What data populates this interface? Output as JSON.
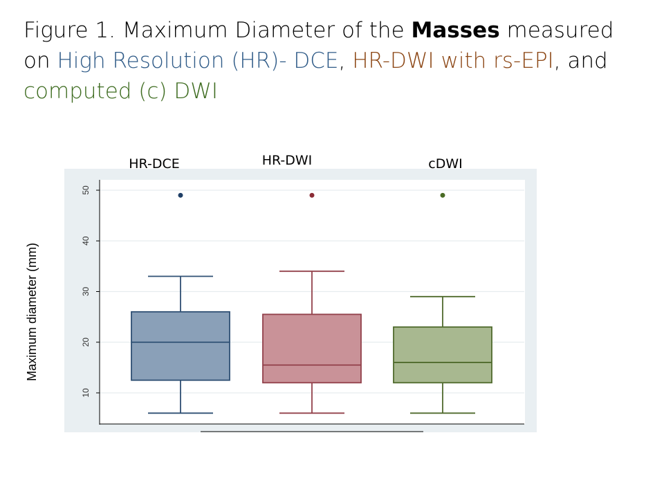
{
  "title": {
    "segments": [
      {
        "text": "Figure 1. Maximum Diameter of the ",
        "color": "#000000",
        "bold": false
      },
      {
        "text": "Masses",
        "color": "#000000",
        "bold": true
      },
      {
        "text": " measured on ",
        "color": "#000000",
        "bold": false
      },
      {
        "text": "High Resolution (HR)- DCE",
        "color": "#2e5a87",
        "bold": false
      },
      {
        "text": ", ",
        "color": "#000000",
        "bold": false
      },
      {
        "text": "HR-DWI with rs-EPI",
        "color": "#8b4513",
        "bold": false
      },
      {
        "text": ", and ",
        "color": "#000000",
        "bold": false
      },
      {
        "text": "computed (c) DWI",
        "color": "#3d6b1f",
        "bold": false
      }
    ]
  },
  "chart_data": {
    "type": "box",
    "title": "",
    "xlabel": "",
    "ylabel": "Maximum diameter (mm)",
    "ylim": [
      4,
      52
    ],
    "yticks": [
      10,
      20,
      30,
      40,
      50
    ],
    "grid": true,
    "categories": [
      "HR-DCE",
      "HR-DWI",
      "cDWI"
    ],
    "series": [
      {
        "category": "HR-DCE",
        "min": 6,
        "q1": 12.5,
        "median": 20,
        "q3": 26,
        "max": 33,
        "outliers": [
          49
        ],
        "fill": "#8aa0b8",
        "stroke": "#2e4f73",
        "outlier_color": "#1f3f66"
      },
      {
        "category": "HR-DWI",
        "min": 6,
        "q1": 12,
        "median": 15.5,
        "q3": 25.5,
        "max": 34,
        "outliers": [
          49
        ],
        "fill": "#c99298",
        "stroke": "#92404a",
        "outlier_color": "#8b2c36"
      },
      {
        "category": "cDWI",
        "min": 6,
        "q1": 12,
        "median": 16,
        "q3": 23,
        "max": 29,
        "outliers": [
          49
        ],
        "fill": "#a8b890",
        "stroke": "#4f6a2c",
        "outlier_color": "#4a6b24"
      }
    ],
    "colors": {
      "outer_bg": "#e9eff2",
      "plot_bg": "#ffffff",
      "grid": "#e6ecef",
      "axis": "#000000"
    }
  }
}
